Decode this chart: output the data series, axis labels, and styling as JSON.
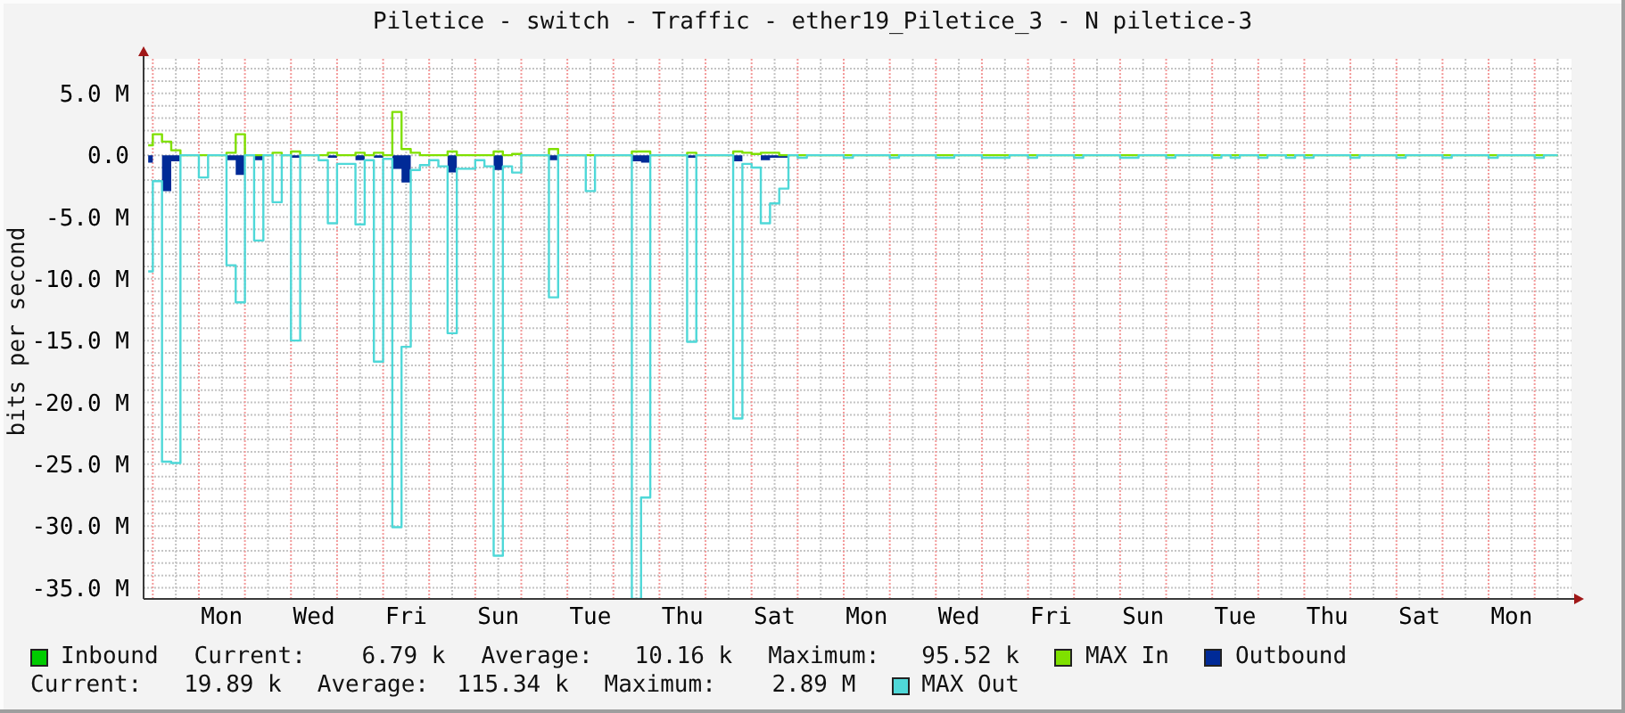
{
  "chart_data": {
    "type": "step",
    "title": "Piletice - switch - Traffic - ether19_Piletice_3 - N piletice-3",
    "ylabel": "bits per second",
    "categories": [
      null,
      null,
      null,
      null,
      null,
      null,
      null,
      null,
      "Mon",
      null,
      null,
      null,
      null,
      null,
      null,
      null,
      null,
      null,
      "Wed",
      null,
      null,
      null,
      null,
      null,
      null,
      null,
      null,
      null,
      "Fri",
      null,
      null,
      null,
      null,
      null,
      null,
      null,
      null,
      null,
      "Sun",
      null,
      null,
      null,
      null,
      null,
      null,
      null,
      null,
      null,
      "Tue",
      null,
      null,
      null,
      null,
      null,
      null,
      null,
      null,
      null,
      "Thu",
      null,
      null,
      null,
      null,
      null,
      null,
      null,
      null,
      null,
      "Sat",
      null,
      null,
      null,
      null,
      null,
      null,
      null,
      null,
      null,
      "Mon",
      null,
      null,
      null,
      null,
      null,
      null,
      null,
      null,
      null,
      "Wed",
      null,
      null,
      null,
      null,
      null,
      null,
      null,
      null,
      null,
      "Fri",
      null,
      null,
      null,
      null,
      null,
      null,
      null,
      null,
      null,
      "Sun",
      null,
      null,
      null,
      null,
      null,
      null,
      null,
      null,
      null,
      "Tue",
      null,
      null,
      null,
      null,
      null,
      null,
      null,
      null,
      null,
      "Thu",
      null,
      null,
      null,
      null,
      null,
      null,
      null,
      null,
      null,
      "Sat",
      null,
      null,
      null,
      null,
      null,
      null,
      null,
      null,
      null,
      "Mon",
      null,
      null,
      null,
      null,
      null,
      null
    ],
    "ylim": [
      -35.9,
      7.8
    ],
    "yticks": [
      {
        "value": 7,
        "label": null
      },
      {
        "value": 6,
        "label": null
      },
      {
        "value": 5,
        "label": "5.0 M"
      },
      {
        "value": 4,
        "label": null
      },
      {
        "value": 3,
        "label": null
      },
      {
        "value": 2,
        "label": null
      },
      {
        "value": 1,
        "label": null
      },
      {
        "value": 0,
        "label": "0.0"
      },
      {
        "value": -1,
        "label": null
      },
      {
        "value": -2,
        "label": null
      },
      {
        "value": -3,
        "label": null
      },
      {
        "value": -4,
        "label": null
      },
      {
        "value": -5,
        "label": "-5.0 M"
      },
      {
        "value": -6,
        "label": null
      },
      {
        "value": -7,
        "label": null
      },
      {
        "value": -8,
        "label": null
      },
      {
        "value": -9,
        "label": null
      },
      {
        "value": -10,
        "label": "-10.0 M"
      },
      {
        "value": -11,
        "label": null
      },
      {
        "value": -12,
        "label": null
      },
      {
        "value": -13,
        "label": null
      },
      {
        "value": -14,
        "label": null
      },
      {
        "value": -15,
        "label": "-15.0 M"
      },
      {
        "value": -16,
        "label": null
      },
      {
        "value": -17,
        "label": null
      },
      {
        "value": -18,
        "label": null
      },
      {
        "value": -19,
        "label": null
      },
      {
        "value": -20,
        "label": "-20.0 M"
      },
      {
        "value": -21,
        "label": null
      },
      {
        "value": -22,
        "label": null
      },
      {
        "value": -23,
        "label": null
      },
      {
        "value": -24,
        "label": null
      },
      {
        "value": -25,
        "label": "-25.0 M"
      },
      {
        "value": -26,
        "label": null
      },
      {
        "value": -27,
        "label": null
      },
      {
        "value": -28,
        "label": null
      },
      {
        "value": -29,
        "label": null
      },
      {
        "value": -30,
        "label": "-30.0 M"
      },
      {
        "value": -31,
        "label": null
      },
      {
        "value": -32,
        "label": null
      },
      {
        "value": -33,
        "label": null
      },
      {
        "value": -34,
        "label": null
      },
      {
        "value": -35,
        "label": "-35.0 M"
      }
    ],
    "grid": true,
    "legend": "bottom",
    "series": [
      {
        "name": "Inbound",
        "type": "area",
        "color": "#00cc00",
        "values": [
          null,
          null,
          null,
          null,
          null,
          null,
          null,
          null,
          null,
          null,
          null,
          null,
          null,
          null,
          null,
          null,
          null,
          null,
          null,
          null,
          null,
          null,
          null,
          null,
          null,
          null,
          null,
          null,
          null,
          null,
          null,
          null,
          null,
          null,
          null,
          null,
          null,
          null,
          null,
          null,
          null,
          null,
          null,
          null,
          null,
          null,
          null,
          null,
          null,
          null,
          null,
          null,
          null,
          null,
          null,
          null,
          null,
          null,
          null,
          null,
          null,
          null,
          null,
          null,
          null,
          null,
          null,
          null,
          null,
          null,
          null,
          null,
          null,
          null,
          null,
          null,
          null,
          null,
          null,
          null,
          null,
          null,
          null,
          null,
          null,
          null,
          null,
          null,
          null,
          null,
          null,
          null,
          null,
          null,
          null,
          null,
          null,
          null,
          null,
          null,
          null,
          null,
          null,
          null,
          null,
          null,
          null,
          null,
          null,
          null,
          null,
          null,
          null,
          null,
          null,
          null,
          null,
          null,
          null,
          null,
          null,
          null,
          null,
          null,
          null,
          null,
          null,
          null,
          null,
          null,
          null,
          null,
          null,
          null,
          null,
          null,
          null,
          null,
          null,
          null,
          null,
          null,
          null,
          null,
          null,
          null,
          null,
          null,
          null,
          null,
          null,
          null,
          null,
          null,
          null
        ]
      },
      {
        "name": "MAX In",
        "type": "step",
        "color": "#7fe000",
        "values": [
          0.8,
          1.7,
          1.1,
          0.4,
          0,
          0,
          0,
          0,
          0,
          0.2,
          1.7,
          0,
          0,
          0,
          0.2,
          0,
          0.3,
          0,
          0,
          0,
          0.2,
          0,
          0,
          0.2,
          0,
          0.2,
          0,
          3.5,
          0.5,
          0.2,
          0,
          0,
          0,
          0.3,
          0,
          0,
          0,
          0,
          0.3,
          0,
          0.1,
          0,
          0,
          0,
          0.5,
          0,
          0,
          0,
          0,
          0,
          0,
          0,
          0,
          0.3,
          0.3,
          0,
          0,
          0,
          0,
          0.2,
          0,
          0,
          0,
          0,
          0.3,
          0.2,
          0.1,
          0.2,
          0.2,
          0,
          0,
          0,
          0,
          0,
          0,
          0,
          0,
          0,
          0,
          0,
          0,
          0,
          0,
          0,
          0,
          0,
          0,
          0,
          0,
          0,
          0,
          0,
          0,
          0,
          0,
          0,
          0,
          0,
          0,
          0,
          0,
          0,
          0,
          0,
          0,
          0,
          0,
          0,
          0,
          0,
          0,
          0,
          0,
          0,
          0,
          0,
          0,
          0,
          0,
          0,
          0,
          0,
          0,
          0,
          0,
          0,
          0,
          0,
          0,
          0,
          0,
          0,
          0,
          0,
          0,
          0,
          0,
          0,
          0,
          0,
          0,
          0,
          0,
          0,
          0,
          0,
          0,
          0,
          0,
          0,
          0,
          0,
          0,
          0,
          null
        ]
      },
      {
        "name": "Outbound",
        "type": "area",
        "color": "#002a97",
        "values": [
          -0.6,
          0,
          -2.9,
          -0.5,
          0,
          0,
          0,
          0,
          0,
          -0.4,
          -1.6,
          0,
          -0.4,
          0,
          0,
          0,
          -0.2,
          0,
          0,
          0,
          -0.2,
          0,
          0,
          -0.4,
          0,
          -0.2,
          0,
          -1.1,
          -2.2,
          0,
          0,
          0,
          0,
          -1.4,
          0,
          0,
          0,
          0,
          -1.2,
          0,
          0,
          0,
          0,
          0,
          -0.4,
          0,
          0,
          0,
          0,
          0,
          0,
          0,
          0,
          -0.5,
          -0.6,
          0,
          0,
          0,
          0,
          -0.2,
          0,
          0,
          0,
          0,
          -0.5,
          0,
          0,
          -0.4,
          -0.2,
          -0.2,
          0,
          0,
          0,
          0,
          0,
          0,
          0,
          0,
          0,
          0,
          0,
          0,
          0,
          0,
          0,
          0,
          0,
          0,
          0,
          0,
          0,
          0,
          0,
          0,
          0,
          0,
          0,
          0,
          0,
          0,
          0,
          0,
          0,
          0,
          0,
          0,
          0,
          0,
          0,
          0,
          0,
          0,
          0,
          0,
          0,
          0,
          0,
          0,
          0,
          0,
          0,
          0,
          0,
          0,
          0,
          0,
          0,
          0,
          0,
          0,
          0,
          0,
          0,
          0,
          0,
          0,
          0,
          0,
          0,
          0,
          0,
          0,
          0,
          0,
          0,
          0,
          0,
          0,
          0,
          0,
          0,
          0,
          0,
          0,
          null
        ]
      },
      {
        "name": "MAX Out",
        "type": "step",
        "color": "#4fd8d8",
        "values": [
          -9.4,
          -2.1,
          -24.8,
          -24.9,
          0,
          0,
          -1.8,
          0,
          0,
          -8.9,
          -11.9,
          0,
          -6.9,
          0,
          -3.8,
          0,
          -15.0,
          0,
          0,
          -0.4,
          -5.5,
          -0.7,
          -0.7,
          -5.6,
          -0.4,
          -16.7,
          -0.3,
          -30.1,
          -15.5,
          -1.2,
          -0.8,
          -0.4,
          -0.9,
          -14.4,
          -1.1,
          -1.1,
          -0.4,
          -0.9,
          -32.4,
          -0.9,
          -1.4,
          0,
          0,
          0,
          -11.5,
          0,
          0,
          0,
          -2.9,
          0,
          0,
          0,
          0,
          -35.9,
          -27.7,
          0,
          0,
          0,
          0,
          -15.1,
          0,
          0,
          0,
          0,
          -21.3,
          -0.7,
          -1.0,
          -5.5,
          -3.9,
          -2.7,
          0,
          -0.2,
          0,
          0,
          0,
          0,
          -0.2,
          0,
          0,
          0,
          0,
          -0.2,
          0,
          0,
          0,
          0,
          -0.2,
          -0.2,
          0,
          0,
          0,
          -0.2,
          -0.2,
          -0.2,
          0,
          0,
          -0.2,
          0,
          0,
          0,
          0,
          -0.2,
          0,
          0,
          0,
          0,
          -0.2,
          -0.2,
          0,
          0,
          0,
          -0.2,
          0,
          0,
          0,
          0,
          -0.2,
          0,
          -0.2,
          0,
          0,
          -0.2,
          0,
          0,
          -0.2,
          0,
          -0.2,
          0,
          0,
          0,
          0,
          -0.2,
          0,
          0,
          0,
          0,
          -0.2,
          0,
          0,
          0,
          0,
          -0.2,
          0,
          0,
          0,
          0,
          -0.2,
          0,
          0,
          0,
          0,
          -0.2,
          0,
          0,
          null
        ]
      }
    ],
    "annotations": [
      "Current:    6.79 k",
      "Average:   10.16 k",
      "Maximum:   95.52 k",
      "Current:   19.89 k",
      "Average:  115.34 k",
      "Maximum:    2.89 M"
    ]
  }
}
